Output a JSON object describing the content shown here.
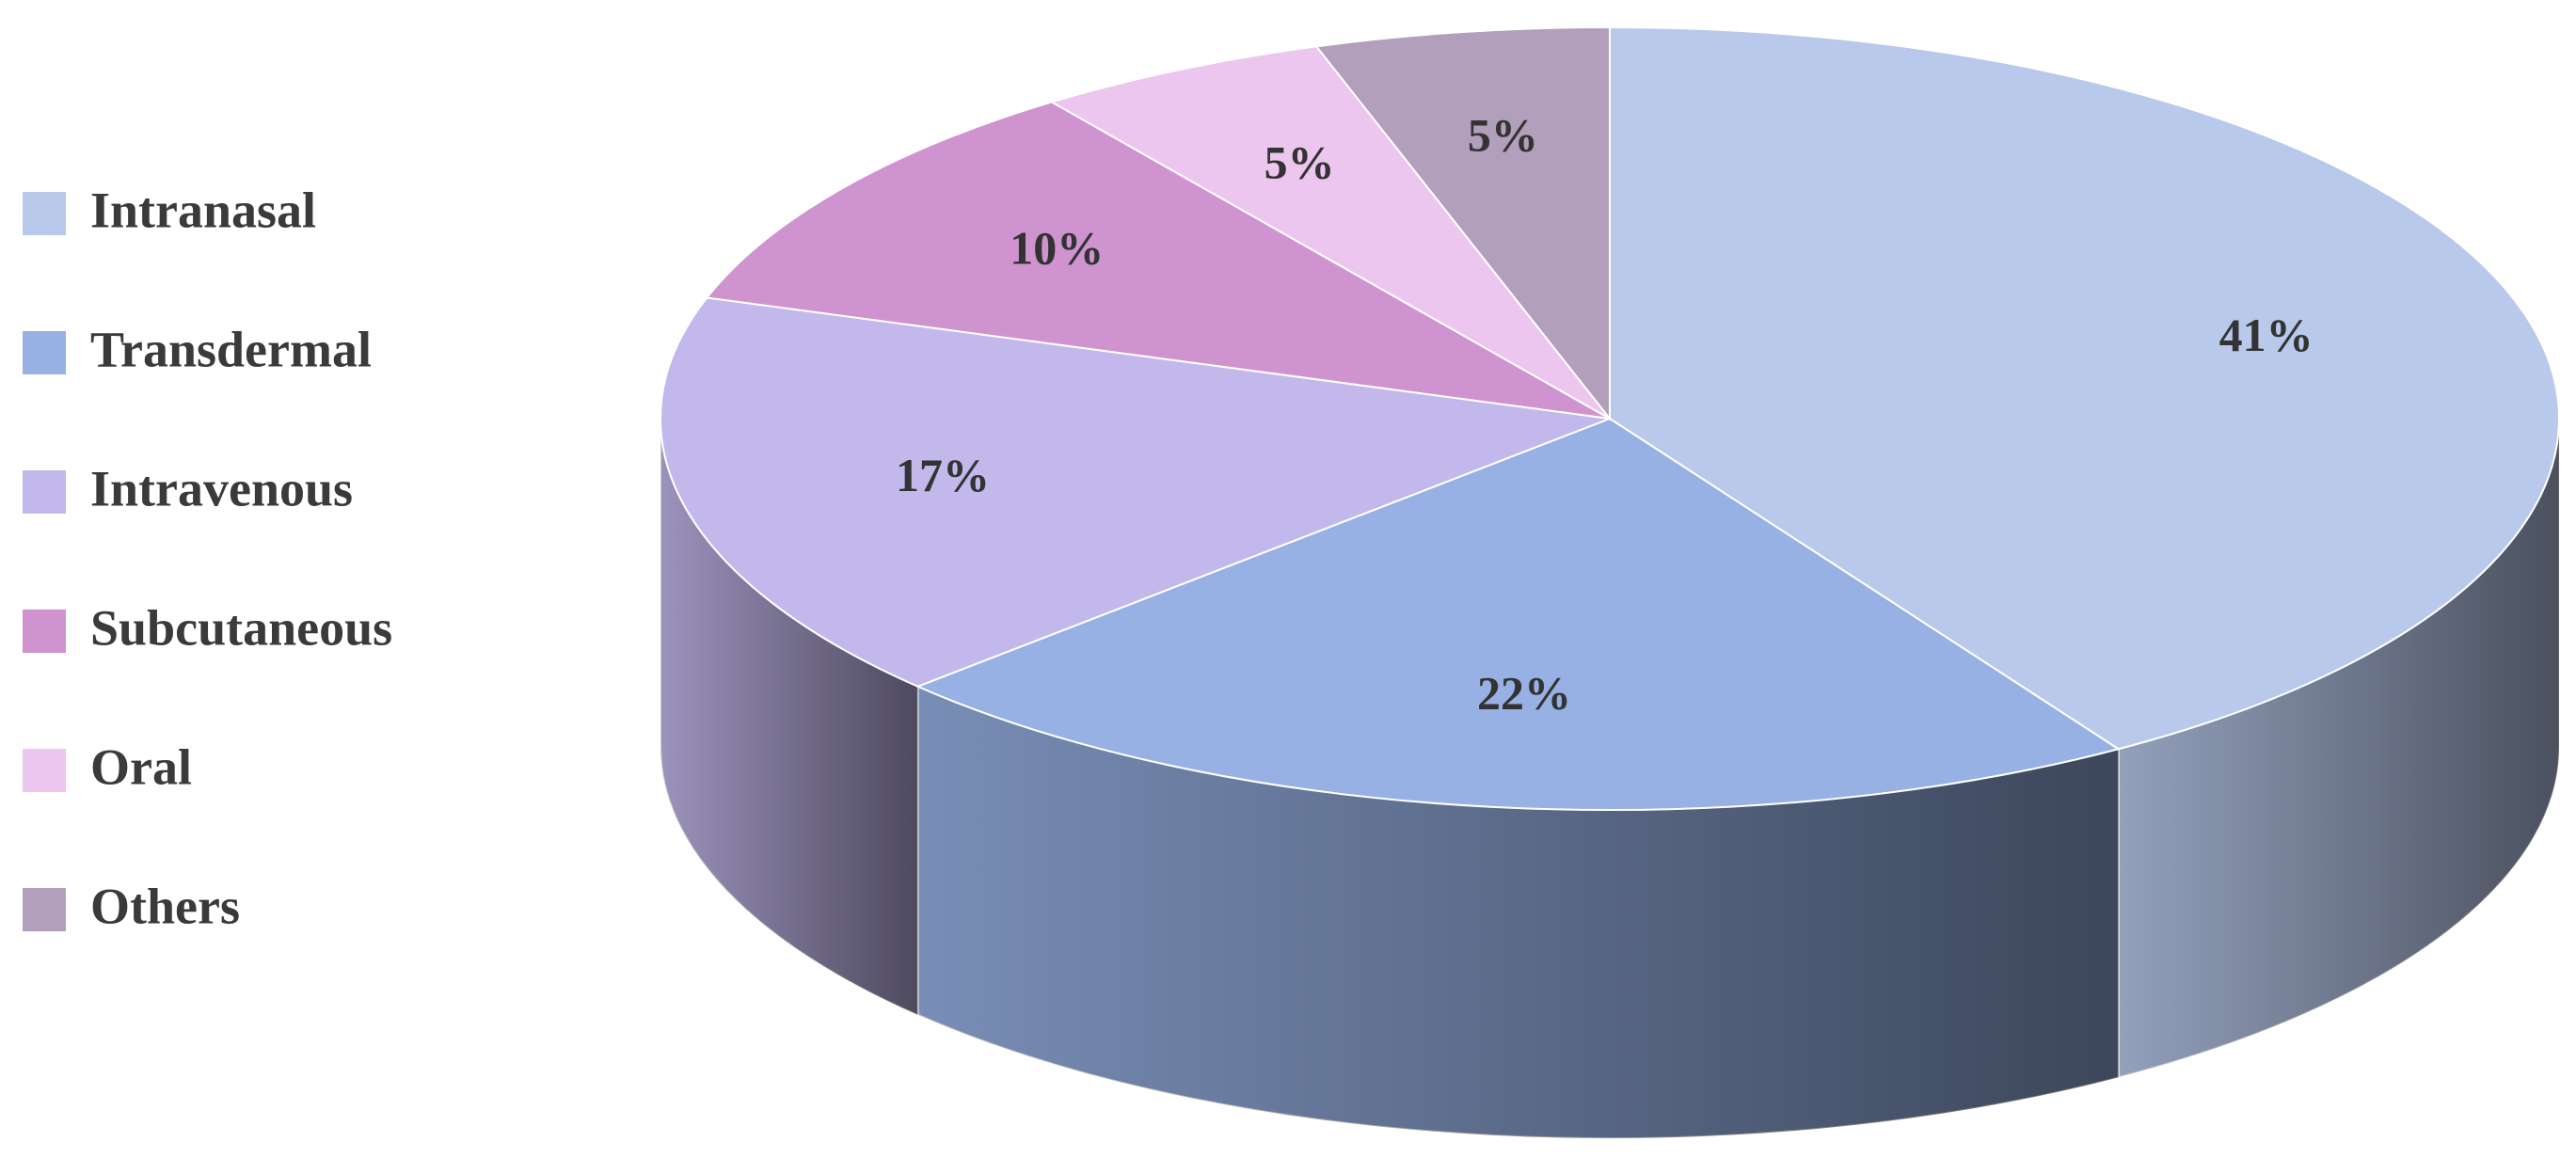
{
  "chart_data": {
    "type": "pie",
    "categories": [
      "Intranasal",
      "Transdermal",
      "Intravenous",
      "Subcutaneous",
      "Oral",
      "Others"
    ],
    "values": [
      41,
      22,
      17,
      10,
      5,
      5
    ],
    "value_labels": [
      "41%",
      "22%",
      "17%",
      "10%",
      "5%",
      "5%"
    ],
    "colors": [
      "#b9c9ec",
      "#97b1e4",
      "#c3b8ec",
      "#cf93cf",
      "#ecc6ee",
      "#b29fbb"
    ],
    "legend": "left"
  }
}
